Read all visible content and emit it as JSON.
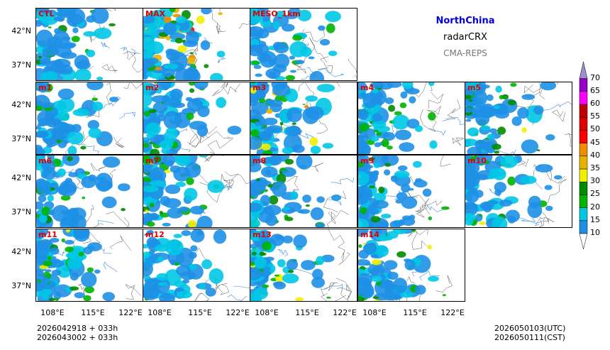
{
  "header": {
    "region": "NorthChina",
    "variable": "radarCRX",
    "model": "CMA-REPS"
  },
  "panels": [
    {
      "label": "CTL",
      "intensity": 0.55
    },
    {
      "label": "MAX",
      "intensity": 1.0
    },
    {
      "label": "MESO_1km",
      "intensity": 0.35
    },
    {
      "label": "m1",
      "intensity": 0.45
    },
    {
      "label": "m2",
      "intensity": 0.6
    },
    {
      "label": "m3",
      "intensity": 0.7
    },
    {
      "label": "m4",
      "intensity": 0.5
    },
    {
      "label": "m5",
      "intensity": 0.6
    },
    {
      "label": "m6",
      "intensity": 0.5
    },
    {
      "label": "m7",
      "intensity": 0.65
    },
    {
      "label": "m8",
      "intensity": 0.55
    },
    {
      "label": "m9",
      "intensity": 0.5
    },
    {
      "label": "m10",
      "intensity": 0.6
    },
    {
      "label": "m11",
      "intensity": 0.65
    },
    {
      "label": "m12",
      "intensity": 0.45
    },
    {
      "label": "m13",
      "intensity": 0.6
    },
    {
      "label": "m14",
      "intensity": 0.55
    }
  ],
  "axes": {
    "lat_labels": [
      "42°N",
      "37°N"
    ],
    "lon_labels": [
      "108°E",
      "115°E",
      "122°E"
    ]
  },
  "colorbar": {
    "levels": [
      "10",
      "15",
      "20",
      "25",
      "30",
      "35",
      "40",
      "45",
      "50",
      "55",
      "60",
      "65",
      "70"
    ],
    "colors": [
      "#1e90e6",
      "#00c8e6",
      "#00b400",
      "#008c00",
      "#f0f000",
      "#e6b400",
      "#f08c00",
      "#ff0000",
      "#e00000",
      "#c00000",
      "#ff00ff",
      "#9400c8",
      "#a08cd0"
    ]
  },
  "footer": {
    "init_utc": "2026042918  +  033h",
    "init_cst": "2026043002  +  033h",
    "valid_utc": "2026050103(UTC)",
    "valid_cst": "2026050111(CST)"
  }
}
